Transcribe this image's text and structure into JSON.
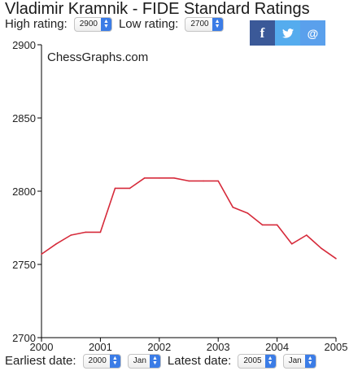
{
  "header": {
    "title": "Vladimir Kramnik - FIDE Standard Ratings",
    "high_label": "High rating:",
    "high_value": "2900",
    "low_label": "Low rating:",
    "low_value": "2700"
  },
  "share": {
    "facebook_glyph": "f",
    "twitter_glyph": "🐦",
    "email_glyph": "@",
    "facebook_color": "#3b5998",
    "twitter_color": "#55acee",
    "email_color": "#5aa0ec"
  },
  "footer": {
    "earliest_label": "Earliest date:",
    "earliest_year": "2000",
    "earliest_month": "Jan",
    "latest_label": "Latest date:",
    "latest_year": "2005",
    "latest_month": "Jan"
  },
  "chart_data": {
    "type": "line",
    "watermark": "ChessGraphs.com",
    "line_color": "#d62a3a",
    "xlim": [
      2000,
      2005
    ],
    "ylim": [
      2700,
      2900
    ],
    "x_ticks": [
      "2000",
      "2001",
      "2002",
      "2003",
      "2004",
      "2005"
    ],
    "y_ticks": [
      "2700",
      "2750",
      "2800",
      "2850",
      "2900"
    ],
    "grid": false,
    "series": [
      {
        "x": [
          2000.0,
          2000.25,
          2000.5,
          2000.75,
          2001.0,
          2001.25,
          2001.5,
          2001.75,
          2002.0,
          2002.25,
          2002.5,
          2002.75,
          2003.0,
          2003.25,
          2003.5,
          2003.75,
          2004.0,
          2004.25,
          2004.5,
          2004.75,
          2005.0
        ],
        "y": [
          2757,
          2764,
          2770,
          2772,
          2772,
          2802,
          2802,
          2809,
          2809,
          2809,
          2807,
          2807,
          2807,
          2789,
          2785,
          2777,
          2777,
          2764,
          2770,
          2761,
          2754
        ]
      }
    ]
  }
}
